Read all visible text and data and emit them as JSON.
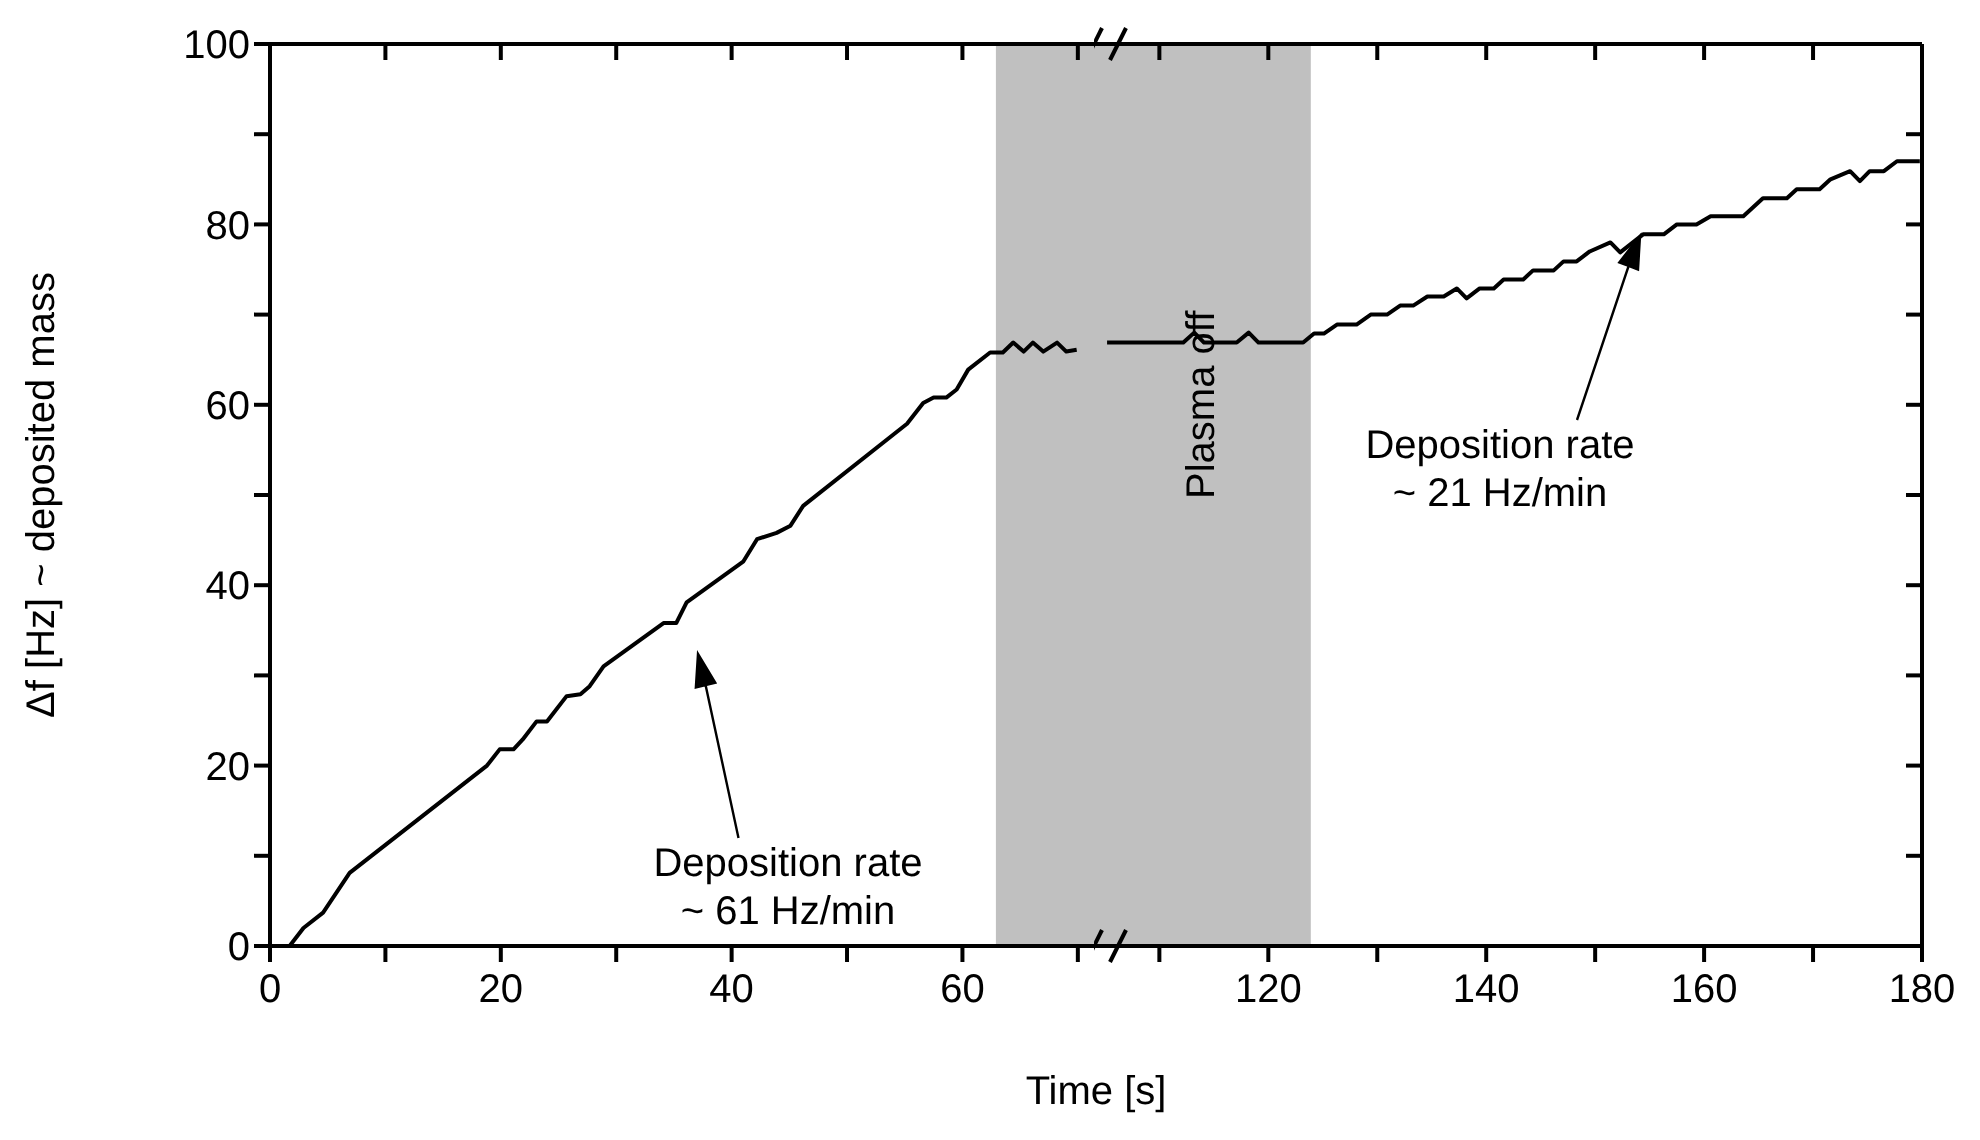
{
  "chart_data": [
    {
      "type": "line",
      "xlabel": "Time [s]",
      "ylabel": "Δf [Hz] ~ deposited mass",
      "xlim": [
        0,
        71.4
      ],
      "ylim": [
        0,
        100
      ],
      "xticks": [
        0,
        {
          "value": 10,
          "label": null
        },
        20,
        {
          "value": 30,
          "label": null
        },
        40,
        {
          "value": 50,
          "label": null
        },
        60,
        {
          "value": 70,
          "label": null
        }
      ],
      "yticks": [
        0,
        {
          "value": 10,
          "label": null
        },
        20,
        {
          "value": 30,
          "label": null
        },
        40,
        {
          "value": 50,
          "label": null
        },
        60,
        {
          "value": 70,
          "label": null
        },
        80,
        {
          "value": 90,
          "label": null
        },
        100
      ],
      "grid": false,
      "series": [
        {
          "color": "#000000",
          "x": [
            1.7,
            2.9,
            4.6,
            6.9,
            8.4,
            18.8,
            19.9,
            21.1,
            21.9,
            23.1,
            24.0,
            25.7,
            26.9,
            27.7,
            28.9,
            34.1,
            35.2,
            36.1,
            41.0,
            42.2,
            43.9,
            45.1,
            46.2,
            55.2,
            56.6,
            57.5,
            58.6,
            59.5,
            60.5,
            62.4,
            63.5,
            64.4,
            65.3,
            66.1,
            67.0,
            68.2,
            69.0,
            69.9
          ],
          "values": [
            0,
            2,
            3.7,
            8.1,
            9.6,
            20,
            21.8,
            21.8,
            22.9,
            24.9,
            24.9,
            27.7,
            27.9,
            28.8,
            31.0,
            35.8,
            35.8,
            38.1,
            42.6,
            45.1,
            45.8,
            46.6,
            48.8,
            57.9,
            60.2,
            60.8,
            60.8,
            61.7,
            63.9,
            65.8,
            65.8,
            66.9,
            65.9,
            66.9,
            65.9,
            66.9,
            65.9,
            66.1
          ]
        }
      ],
      "bands": [
        {
          "axis": "x",
          "from": 62.9,
          "to": 71.4,
          "color": "#c0c0c0"
        }
      ],
      "annotations": [
        "Deposition rate\n~ 61 Hz/min"
      ]
    },
    {
      "type": "line",
      "xlim": [
        104,
        180
      ],
      "ylim": [
        0,
        100
      ],
      "tick_labels": "x",
      "xticks": [
        {
          "value": 110,
          "label": null
        },
        120,
        {
          "value": 130,
          "label": null
        },
        140,
        {
          "value": 150,
          "label": null
        },
        160,
        {
          "value": 170,
          "label": null
        },
        180
      ],
      "yticks": [
        0,
        {
          "value": 10,
          "label": null
        },
        20,
        {
          "value": 30,
          "label": null
        },
        40,
        {
          "value": 50,
          "label": null
        },
        60,
        {
          "value": 70,
          "label": null
        },
        80,
        {
          "value": 90,
          "label": null
        },
        100
      ],
      "grid": false,
      "series": [
        {
          "color": "#000000",
          "x": [
            105.2,
            112.2,
            113.2,
            114.1,
            117.1,
            118.2,
            119.1,
            123.2,
            124.2,
            125.1,
            126.3,
            128.1,
            129.4,
            130.9,
            132.1,
            133.3,
            134.6,
            136.1,
            137.3,
            138.2,
            139.4,
            140.7,
            141.6,
            143.4,
            144.3,
            146.2,
            147.1,
            148.3,
            149.5,
            151.4,
            152.3,
            154.4,
            156.3,
            157.5,
            159.3,
            160.6,
            163.6,
            165.4,
            167.6,
            168.5,
            170.6,
            171.6,
            173.4,
            174.3,
            175.2,
            176.5,
            177.7,
            179.8
          ],
          "values": [
            66.9,
            66.9,
            68.0,
            66.9,
            66.9,
            68.0,
            66.9,
            66.9,
            67.9,
            67.9,
            68.9,
            68.9,
            70.0,
            70.0,
            71.0,
            71.0,
            72.0,
            72.0,
            72.9,
            71.8,
            72.9,
            72.9,
            73.9,
            73.9,
            74.9,
            74.9,
            75.9,
            75.9,
            77.0,
            78.0,
            76.9,
            78.9,
            78.9,
            80.0,
            80.0,
            80.9,
            80.9,
            82.9,
            82.9,
            83.9,
            83.9,
            85.0,
            85.9,
            84.8,
            85.9,
            85.9,
            87.0,
            87.0
          ]
        }
      ],
      "bands": [
        {
          "axis": "x",
          "from": 104,
          "to": 123.9,
          "color": "#c0c0c0",
          "label": "Plasma off"
        }
      ],
      "annotations": [
        "Deposition rate\n~ 21 Hz/min"
      ]
    }
  ]
}
